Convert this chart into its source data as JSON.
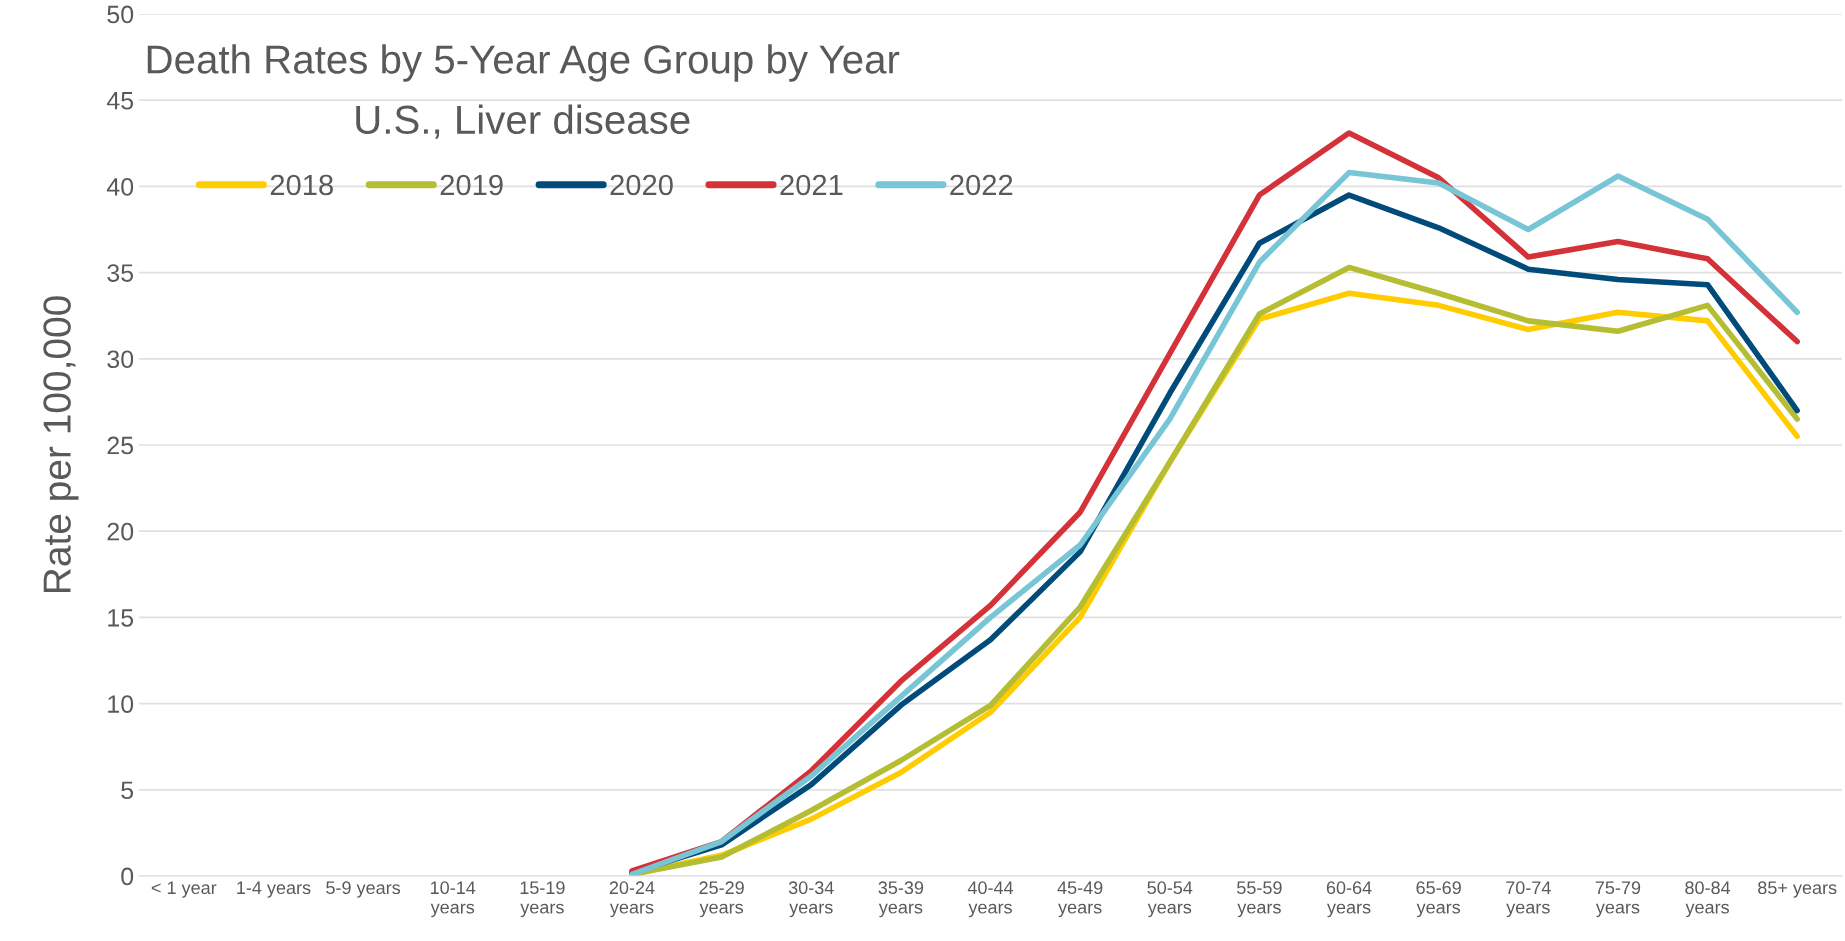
{
  "chart_data": {
    "type": "line",
    "title": "Death Rates by 5-Year Age Group by Year",
    "subtitle": "U.S., Liver disease",
    "ylabel": "Rate per 100,000",
    "categories": [
      "< 1 year",
      "1-4 years",
      "5-9 years",
      "10-14\nyears",
      "15-19\nyears",
      "20-24\nyears",
      "25-29\nyears",
      "30-34\nyears",
      "35-39\nyears",
      "40-44\nyears",
      "45-49\nyears",
      "50-54\nyears",
      "55-59\nyears",
      "60-64\nyears",
      "65-69\nyears",
      "70-74\nyears",
      "75-79\nyears",
      "80-84\nyears",
      "85+ years"
    ],
    "series": [
      {
        "name": "2018",
        "color": "#ffcc00",
        "values": [
          null,
          null,
          null,
          null,
          null,
          0.1,
          1.2,
          3.3,
          6.0,
          9.5,
          15.0,
          24.0,
          32.3,
          33.8,
          33.1,
          31.7,
          32.7,
          32.2,
          25.5
        ]
      },
      {
        "name": "2019",
        "color": "#b5bd32",
        "values": [
          null,
          null,
          null,
          null,
          null,
          0.1,
          1.1,
          3.8,
          6.7,
          9.9,
          15.6,
          24.0,
          32.6,
          35.3,
          33.8,
          32.2,
          31.6,
          33.1,
          26.5
        ]
      },
      {
        "name": "2020",
        "color": "#004b7a",
        "values": [
          null,
          null,
          null,
          null,
          null,
          0.2,
          1.8,
          5.3,
          9.9,
          13.7,
          18.8,
          28.0,
          36.7,
          39.5,
          37.6,
          35.2,
          34.6,
          34.3,
          27.0
        ]
      },
      {
        "name": "2021",
        "color": "#d43138",
        "values": [
          null,
          null,
          null,
          null,
          null,
          0.3,
          2.0,
          6.1,
          11.3,
          15.7,
          21.1,
          30.3,
          39.5,
          43.1,
          40.5,
          35.9,
          36.8,
          35.8,
          31.0
        ]
      },
      {
        "name": "2022",
        "color": "#78c5d6",
        "values": [
          null,
          null,
          null,
          null,
          null,
          0.1,
          2.0,
          5.8,
          10.4,
          15.0,
          19.2,
          26.5,
          35.6,
          40.8,
          40.2,
          37.5,
          40.6,
          38.1,
          32.7
        ]
      }
    ],
    "ylim": [
      0,
      50
    ],
    "yticks": [
      0,
      5,
      10,
      15,
      20,
      25,
      30,
      35,
      40,
      45,
      50
    ],
    "grid": "y",
    "legend": "top left",
    "marker": "none",
    "line_style": "solid"
  }
}
